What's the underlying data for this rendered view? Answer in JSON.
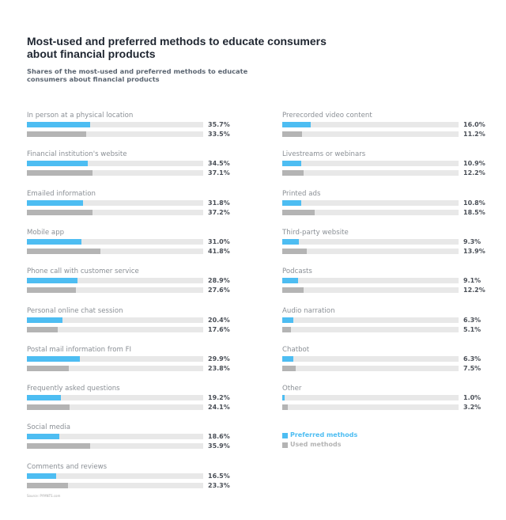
{
  "chart_data": {
    "type": "bar",
    "title": "Most-used and preferred methods to educate consumers about financial products",
    "subtitle": "Shares of the most-used and preferred methods to educate consumers about financial products",
    "xlim": [
      0,
      100
    ],
    "grid": false,
    "legend_placement": "bottom-right",
    "categories": [
      "In person at a physical location",
      "Financial institution's website",
      "Emailed information",
      "Mobile app",
      "Phone call with customer service",
      "Personal online chat session",
      "Postal mail information from FI",
      "Frequently asked questions",
      "Social media",
      "Comments and reviews",
      "Prerecorded video content",
      "Livestreams or webinars",
      "Printed ads",
      "Third-party website",
      "Podcasts",
      "Audio narration",
      "Chatbot",
      "Other"
    ],
    "series": [
      {
        "name": "Preferred methods",
        "color": "#4dbdf2",
        "values": [
          35.7,
          34.5,
          31.8,
          31.0,
          28.9,
          20.4,
          29.9,
          19.2,
          18.6,
          16.5,
          16.0,
          10.9,
          10.8,
          9.3,
          9.1,
          6.3,
          6.3,
          1.0
        ]
      },
      {
        "name": "Used methods",
        "color": "#b4b4b4",
        "values": [
          33.5,
          37.1,
          37.2,
          41.8,
          27.6,
          17.6,
          23.8,
          24.1,
          35.9,
          23.3,
          11.2,
          12.2,
          18.5,
          13.9,
          12.2,
          5.1,
          7.5,
          3.2
        ]
      }
    ],
    "source": "Source: PYMNTS.com"
  }
}
